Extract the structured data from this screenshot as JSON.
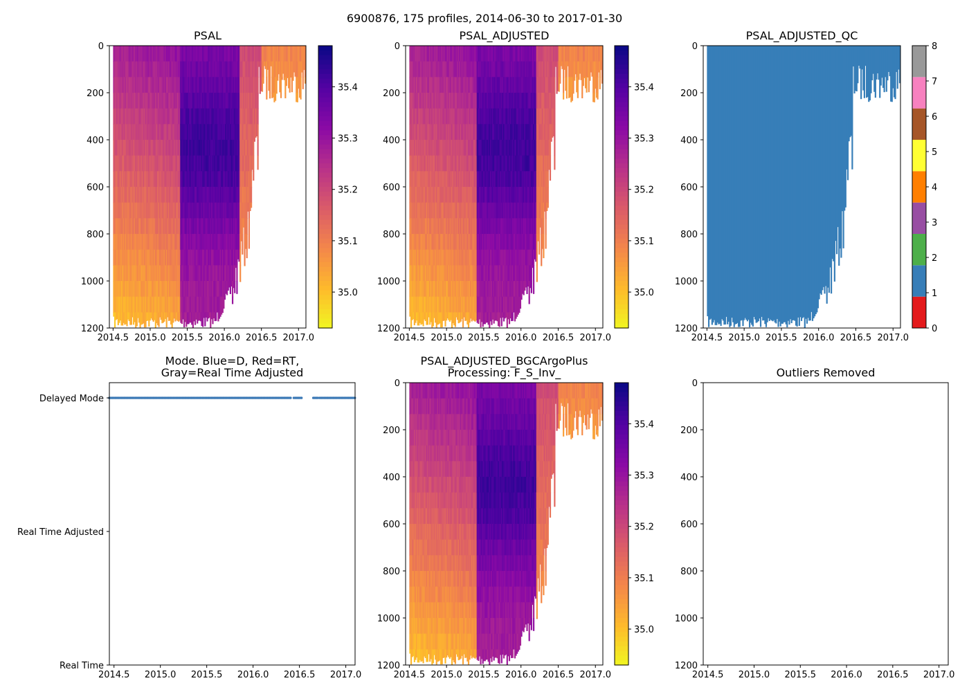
{
  "figure": {
    "suptitle": "6900876, 175 profiles, 2014-06-30 to 2017-01-30"
  },
  "colors": {
    "delayed_mode_marker": "#3a78b5",
    "qc_blue": "#377eb8"
  },
  "chart_data": [
    {
      "id": "psal",
      "type": "heatmap",
      "title": "PSAL",
      "xlabel": "",
      "ylabel": "",
      "xlim": [
        2014.45,
        2017.1
      ],
      "ylim": [
        1200,
        0
      ],
      "x_ticks": [
        "2014.5",
        "2015.0",
        "2015.5",
        "2016.0",
        "2016.5",
        "2017.0"
      ],
      "y_ticks": [
        "0",
        "200",
        "400",
        "600",
        "800",
        "1000",
        "1200"
      ],
      "colormap": "plasma_r",
      "color_range": [
        34.93,
        35.48
      ],
      "colorbar_ticks": [
        "35.0",
        "35.1",
        "35.2",
        "35.3",
        "35.4"
      ]
    },
    {
      "id": "psal_adjusted",
      "type": "heatmap",
      "title": "PSAL_ADJUSTED",
      "xlabel": "",
      "ylabel": "",
      "xlim": [
        2014.45,
        2017.1
      ],
      "ylim": [
        1200,
        0
      ],
      "x_ticks": [
        "2014.5",
        "2015.0",
        "2015.5",
        "2016.0",
        "2016.5",
        "2017.0"
      ],
      "y_ticks": [
        "0",
        "200",
        "400",
        "600",
        "800",
        "1000",
        "1200"
      ],
      "colormap": "plasma_r",
      "color_range": [
        34.93,
        35.48
      ],
      "colorbar_ticks": [
        "35.0",
        "35.1",
        "35.2",
        "35.3",
        "35.4"
      ]
    },
    {
      "id": "psal_adjusted_qc",
      "type": "heatmap",
      "title": "PSAL_ADJUSTED_QC",
      "xlabel": "",
      "ylabel": "",
      "xlim": [
        2014.45,
        2017.1
      ],
      "ylim": [
        1200,
        0
      ],
      "x_ticks": [
        "2014.5",
        "2015.0",
        "2015.5",
        "2016.0",
        "2016.5",
        "2017.0"
      ],
      "y_ticks": [
        "0",
        "200",
        "400",
        "600",
        "800",
        "1000",
        "1200"
      ],
      "dominant_flag": 1,
      "colorbar_ticks": [
        "0",
        "1",
        "2",
        "3",
        "4",
        "5",
        "6",
        "7",
        "8"
      ],
      "qc_colors": [
        "#e41a1c",
        "#377eb8",
        "#4daf4a",
        "#984ea3",
        "#ff7f00",
        "#ffff33",
        "#a65628",
        "#f781bf",
        "#999999"
      ]
    },
    {
      "id": "mode",
      "type": "scatter",
      "title": "Mode. Blue=D, Red=RT,",
      "title_line2": "Gray=Real Time Adjusted",
      "xlabel": "",
      "ylabel": "",
      "xlim": [
        2014.45,
        2017.1
      ],
      "x_ticks": [
        "2014.5",
        "2015.0",
        "2015.5",
        "2016.0",
        "2016.5",
        "2017.0"
      ],
      "y_ticks": [
        "Delayed Mode",
        "Real Time Adjusted",
        "Real Time"
      ],
      "points_mode": "Delayed Mode",
      "point_x_segments": [
        [
          2014.45,
          2016.42
        ],
        [
          2016.44,
          2016.53
        ],
        [
          2016.65,
          2016.7
        ],
        [
          2016.72,
          2017.1
        ]
      ]
    },
    {
      "id": "psal_bgc",
      "type": "heatmap",
      "title": "PSAL_ADJUSTED_BGCArgoPlus",
      "title_line2": "Processing: F_S_Inv_",
      "xlabel": "",
      "ylabel": "",
      "xlim": [
        2014.45,
        2017.1
      ],
      "ylim": [
        1200,
        0
      ],
      "x_ticks": [
        "2014.5",
        "2015.0",
        "2015.5",
        "2016.0",
        "2016.5",
        "2017.0"
      ],
      "y_ticks": [
        "0",
        "200",
        "400",
        "600",
        "800",
        "1000",
        "1200"
      ],
      "colormap": "plasma_r",
      "color_range": [
        34.93,
        35.48
      ],
      "colorbar_ticks": [
        "35.0",
        "35.1",
        "35.2",
        "35.3",
        "35.4"
      ]
    },
    {
      "id": "outliers",
      "type": "scatter",
      "title": "Outliers Removed",
      "xlabel": "",
      "ylabel": "",
      "xlim": [
        2014.45,
        2017.1
      ],
      "ylim": [
        1200,
        0
      ],
      "x_ticks": [
        "2014.5",
        "2015.0",
        "2015.5",
        "2016.0",
        "2016.5",
        "2017.0"
      ],
      "y_ticks": [
        "0",
        "200",
        "400",
        "600",
        "800",
        "1000",
        "1200"
      ]
    }
  ]
}
